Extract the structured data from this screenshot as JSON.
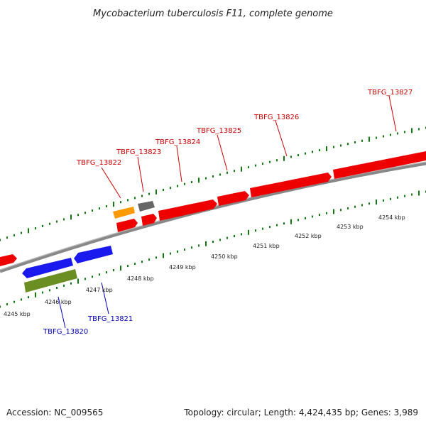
{
  "title": "Mycobacterium tuberculosis F11, complete genome",
  "footer": {
    "accession": "Accession: NC_009565",
    "info": "Topology: circular; Length: 4,424,435 bp; Genes: 3,989"
  },
  "colors": {
    "forward_label": "#cc0000",
    "reverse_label": "#0000bb",
    "tick": "#117711",
    "backbone": "#888888",
    "red": "#ee0000",
    "blue": "#1a1aee",
    "orange": "#ff9900",
    "gray": "#666666",
    "olive": "#6b8e23"
  },
  "kbp_ticks": [
    "4245 kbp",
    "4246 kbp",
    "4247 kbp",
    "4248 kbp",
    "4249 kbp",
    "4250 kbp",
    "4251 kbp",
    "4252 kbp",
    "4253 kbp",
    "4254 kbp"
  ],
  "labels": {
    "forward": [
      "TBFG_13822",
      "TBFG_13823",
      "TBFG_13824",
      "TBFG_13825",
      "TBFG_13826",
      "TBFG_13827"
    ],
    "reverse": [
      "TBFG_13820",
      "TBFG_13821"
    ]
  }
}
